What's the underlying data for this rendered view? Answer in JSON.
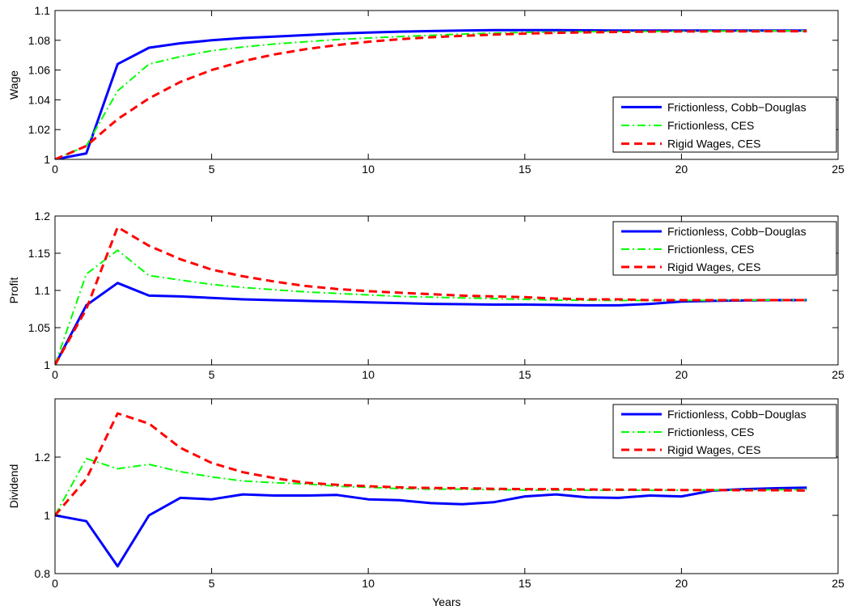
{
  "figure": {
    "background": "#ffffff"
  },
  "style": {
    "series": [
      {
        "color": "#0000ff",
        "dash": "solid",
        "width": 3
      },
      {
        "color": "#00ff00",
        "dash": "dashdot",
        "width": 2
      },
      {
        "color": "#ff0000",
        "dash": "dashed",
        "width": 3
      }
    ]
  },
  "chart_data": [
    {
      "type": "line",
      "ylabel": "Wage",
      "xlabel": "",
      "xlim": [
        0,
        25
      ],
      "ylim": [
        1,
        1.1
      ],
      "xticks": [
        "0",
        "5",
        "10",
        "15",
        "20",
        "25"
      ],
      "yticks": [
        "1",
        "1.02",
        "1.04",
        "1.06",
        "1.08",
        "1.1"
      ],
      "grid": false,
      "legend_position": "bottom-right",
      "x": [
        0,
        1,
        2,
        3,
        4,
        5,
        6,
        7,
        8,
        9,
        10,
        11,
        12,
        13,
        14,
        15,
        16,
        17,
        18,
        19,
        20,
        21,
        22,
        23,
        24
      ],
      "series": [
        {
          "name": "Frictionless, Cobb−Douglas",
          "values": [
            1.0,
            1.004,
            1.064,
            1.075,
            1.078,
            1.08,
            1.0815,
            1.0825,
            1.0835,
            1.0845,
            1.0852,
            1.0858,
            1.0862,
            1.0866,
            1.0868,
            1.0868,
            1.0868,
            1.0867,
            1.0866,
            1.0866,
            1.0866,
            1.0866,
            1.0866,
            1.0866,
            1.0866
          ]
        },
        {
          "name": "Frictionless, CES",
          "values": [
            1.0,
            1.009,
            1.046,
            1.064,
            1.069,
            1.073,
            1.0755,
            1.0775,
            1.079,
            1.0805,
            1.0815,
            1.0825,
            1.0833,
            1.0842,
            1.0848,
            1.0853,
            1.0856,
            1.0858,
            1.0859,
            1.086,
            1.0861,
            1.0862,
            1.0863,
            1.0864,
            1.0864
          ]
        },
        {
          "name": "Rigid Wages, CES",
          "values": [
            1.0,
            1.009,
            1.027,
            1.041,
            1.052,
            1.06,
            1.066,
            1.0705,
            1.074,
            1.0768,
            1.079,
            1.0807,
            1.082,
            1.083,
            1.0838,
            1.0845,
            1.085,
            1.0853,
            1.0856,
            1.0858,
            1.0859,
            1.086,
            1.086,
            1.0861,
            1.0861
          ]
        }
      ]
    },
    {
      "type": "line",
      "ylabel": "Profit",
      "xlabel": "",
      "xlim": [
        0,
        25
      ],
      "ylim": [
        1,
        1.2
      ],
      "xticks": [
        "0",
        "5",
        "10",
        "15",
        "20",
        "25"
      ],
      "yticks": [
        "1",
        "1.05",
        "1.1",
        "1.15",
        "1.2"
      ],
      "grid": false,
      "legend_position": "top-right",
      "x": [
        0,
        1,
        2,
        3,
        4,
        5,
        6,
        7,
        8,
        9,
        10,
        11,
        12,
        13,
        14,
        15,
        16,
        17,
        18,
        19,
        20,
        21,
        22,
        23,
        24
      ],
      "series": [
        {
          "name": "Frictionless, Cobb−Douglas",
          "values": [
            1.0,
            1.08,
            1.11,
            1.093,
            1.092,
            1.09,
            1.088,
            1.087,
            1.086,
            1.085,
            1.084,
            1.083,
            1.082,
            1.0815,
            1.081,
            1.081,
            1.0805,
            1.08,
            1.08,
            1.082,
            1.085,
            1.086,
            1.0865,
            1.087,
            1.087
          ]
        },
        {
          "name": "Frictionless, CES",
          "values": [
            1.0,
            1.122,
            1.154,
            1.12,
            1.114,
            1.108,
            1.104,
            1.101,
            1.098,
            1.096,
            1.094,
            1.092,
            1.091,
            1.09,
            1.089,
            1.088,
            1.087,
            1.087,
            1.0865,
            1.0865,
            1.0865,
            1.0865,
            1.087,
            1.087,
            1.087
          ]
        },
        {
          "name": "Rigid Wages, CES",
          "values": [
            1.0,
            1.075,
            1.185,
            1.16,
            1.142,
            1.128,
            1.119,
            1.112,
            1.106,
            1.102,
            1.099,
            1.097,
            1.095,
            1.093,
            1.092,
            1.091,
            1.089,
            1.088,
            1.088,
            1.087,
            1.087,
            1.087,
            1.087,
            1.087,
            1.087
          ]
        }
      ]
    },
    {
      "type": "line",
      "ylabel": "Dividend",
      "xlabel": "Years",
      "xlim": [
        0,
        25
      ],
      "ylim": [
        0.8,
        1.4
      ],
      "xticks": [
        "0",
        "5",
        "10",
        "15",
        "20",
        "25"
      ],
      "yticks": [
        "0.8",
        "1",
        "1.2"
      ],
      "grid": false,
      "legend_position": "top-right",
      "x": [
        0,
        1,
        2,
        3,
        4,
        5,
        6,
        7,
        8,
        9,
        10,
        11,
        12,
        13,
        14,
        15,
        16,
        17,
        18,
        19,
        20,
        21,
        22,
        23,
        24
      ],
      "series": [
        {
          "name": "Frictionless, Cobb−Douglas",
          "values": [
            1.0,
            0.98,
            0.825,
            1.0,
            1.06,
            1.055,
            1.072,
            1.068,
            1.068,
            1.07,
            1.055,
            1.052,
            1.042,
            1.038,
            1.045,
            1.065,
            1.072,
            1.062,
            1.06,
            1.068,
            1.065,
            1.085,
            1.09,
            1.093,
            1.095
          ]
        },
        {
          "name": "Frictionless, CES",
          "values": [
            1.0,
            1.195,
            1.16,
            1.175,
            1.15,
            1.132,
            1.118,
            1.112,
            1.108,
            1.1,
            1.096,
            1.092,
            1.09,
            1.09,
            1.088,
            1.087,
            1.087,
            1.086,
            1.086,
            1.086,
            1.086,
            1.087,
            1.087,
            1.088,
            1.088
          ]
        },
        {
          "name": "Rigid Wages, CES",
          "values": [
            1.0,
            1.125,
            1.35,
            1.315,
            1.232,
            1.18,
            1.148,
            1.128,
            1.112,
            1.105,
            1.1,
            1.096,
            1.094,
            1.093,
            1.091,
            1.09,
            1.09,
            1.089,
            1.088,
            1.088,
            1.087,
            1.087,
            1.086,
            1.086,
            1.085
          ]
        }
      ]
    }
  ]
}
